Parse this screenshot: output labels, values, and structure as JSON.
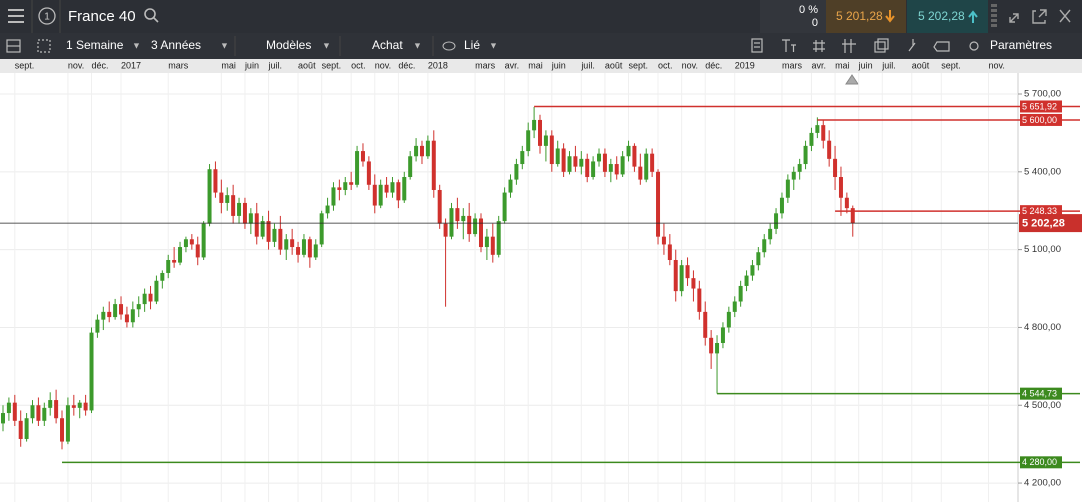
{
  "ui": {
    "instrument": "France 40",
    "badge": "1",
    "change_pct": "0 %",
    "change": "0",
    "sell": "5 201,28",
    "buy": "5 202,28",
    "toolbar": {
      "period": "1 Semaine",
      "range": "3 Années",
      "templates": "Modèles",
      "side": "Achat",
      "link": "Lié",
      "settings": "Paramètres"
    }
  },
  "chart_data": {
    "type": "candlestick",
    "grid": true,
    "up_color": "#3c9a2c",
    "down_color": "#d0312d",
    "ylim": [
      4127,
      5781
    ],
    "yticks": [
      {
        "value": 4200,
        "label": "4 200,00"
      },
      {
        "value": 4500,
        "label": "4 500,00"
      },
      {
        "value": 4800,
        "label": "4 800,00"
      },
      {
        "value": 5100,
        "label": "5 100,00"
      },
      {
        "value": 5400,
        "label": "5 400,00"
      },
      {
        "value": 5700,
        "label": "5 700,00"
      }
    ],
    "categories": [
      null,
      null,
      "sept.",
      null,
      null,
      null,
      null,
      null,
      null,
      null,
      null,
      "nov.",
      null,
      null,
      null,
      "déc.",
      null,
      null,
      null,
      null,
      "2017",
      null,
      null,
      null,
      null,
      null,
      null,
      null,
      "mars",
      null,
      null,
      null,
      null,
      null,
      null,
      null,
      null,
      "mai",
      null,
      null,
      null,
      "juin",
      null,
      null,
      null,
      "juil.",
      null,
      null,
      null,
      null,
      "août",
      null,
      null,
      null,
      "sept.",
      null,
      null,
      null,
      null,
      "oct.",
      null,
      null,
      null,
      "nov.",
      null,
      null,
      null,
      "déc.",
      null,
      null,
      null,
      null,
      "2018",
      null,
      null,
      null,
      null,
      null,
      null,
      null,
      "mars",
      null,
      null,
      null,
      null,
      "avr.",
      null,
      null,
      null,
      "mai",
      null,
      null,
      null,
      "juin",
      null,
      null,
      null,
      null,
      "juil.",
      null,
      null,
      null,
      "août",
      null,
      null,
      null,
      "sept.",
      null,
      null,
      null,
      null,
      "oct.",
      null,
      null,
      null,
      "nov.",
      null,
      null,
      null,
      "déc.",
      null,
      null,
      null,
      null,
      "2019",
      null,
      null,
      null,
      null,
      null,
      null,
      null,
      "mars",
      null,
      null,
      null,
      null,
      "avr.",
      null,
      null,
      null,
      "mai",
      null,
      null,
      null,
      "juin",
      null,
      null,
      null,
      "juil.",
      null,
      null,
      null,
      null,
      "août",
      null,
      null,
      null,
      null,
      "sept.",
      null,
      null,
      null,
      null,
      null,
      null,
      null,
      "nov.",
      null,
      null,
      null,
      null
    ],
    "candles": [
      [
        4430,
        4500,
        4400,
        4470
      ],
      [
        4470,
        4530,
        4440,
        4510
      ],
      [
        4510,
        4540,
        4420,
        4440
      ],
      [
        4440,
        4480,
        4340,
        4370
      ],
      [
        4370,
        4470,
        4360,
        4450
      ],
      [
        4450,
        4520,
        4430,
        4500
      ],
      [
        4500,
        4530,
        4420,
        4440
      ],
      [
        4440,
        4510,
        4420,
        4490
      ],
      [
        4490,
        4550,
        4460,
        4520
      ],
      [
        4520,
        4560,
        4430,
        4450
      ],
      [
        4450,
        4480,
        4330,
        4360
      ],
      [
        4360,
        4530,
        4350,
        4500
      ],
      [
        4500,
        4540,
        4460,
        4490
      ],
      [
        4490,
        4520,
        4450,
        4510
      ],
      [
        4510,
        4540,
        4460,
        4480
      ],
      [
        4480,
        4800,
        4470,
        4780
      ],
      [
        4780,
        4850,
        4760,
        4830
      ],
      [
        4830,
        4880,
        4790,
        4860
      ],
      [
        4860,
        4900,
        4820,
        4840
      ],
      [
        4840,
        4910,
        4830,
        4890
      ],
      [
        4890,
        4920,
        4830,
        4850
      ],
      [
        4850,
        4880,
        4800,
        4820
      ],
      [
        4820,
        4900,
        4800,
        4870
      ],
      [
        4870,
        4920,
        4840,
        4890
      ],
      [
        4890,
        4950,
        4860,
        4930
      ],
      [
        4930,
        4960,
        4870,
        4900
      ],
      [
        4900,
        5000,
        4890,
        4980
      ],
      [
        4980,
        5020,
        4950,
        5010
      ],
      [
        5010,
        5080,
        4990,
        5060
      ],
      [
        5060,
        5110,
        5030,
        5050
      ],
      [
        5050,
        5130,
        5040,
        5110
      ],
      [
        5110,
        5150,
        5090,
        5140
      ],
      [
        5140,
        5160,
        5100,
        5120
      ],
      [
        5120,
        5150,
        5040,
        5070
      ],
      [
        5070,
        5210,
        5060,
        5200
      ],
      [
        5200,
        5430,
        5190,
        5410
      ],
      [
        5410,
        5440,
        5300,
        5320
      ],
      [
        5320,
        5370,
        5240,
        5280
      ],
      [
        5280,
        5340,
        5250,
        5310
      ],
      [
        5310,
        5350,
        5200,
        5230
      ],
      [
        5230,
        5300,
        5200,
        5280
      ],
      [
        5280,
        5300,
        5180,
        5200
      ],
      [
        5200,
        5260,
        5160,
        5240
      ],
      [
        5240,
        5280,
        5120,
        5150
      ],
      [
        5150,
        5230,
        5140,
        5210
      ],
      [
        5210,
        5250,
        5100,
        5130
      ],
      [
        5130,
        5200,
        5110,
        5180
      ],
      [
        5180,
        5230,
        5080,
        5100
      ],
      [
        5100,
        5160,
        5060,
        5140
      ],
      [
        5140,
        5180,
        5080,
        5110
      ],
      [
        5110,
        5130,
        5050,
        5080
      ],
      [
        5080,
        5160,
        5070,
        5140
      ],
      [
        5140,
        5150,
        5030,
        5070
      ],
      [
        5070,
        5140,
        5060,
        5120
      ],
      [
        5120,
        5250,
        5110,
        5240
      ],
      [
        5240,
        5300,
        5220,
        5270
      ],
      [
        5270,
        5360,
        5250,
        5340
      ],
      [
        5340,
        5370,
        5290,
        5330
      ],
      [
        5330,
        5380,
        5310,
        5360
      ],
      [
        5360,
        5400,
        5330,
        5350
      ],
      [
        5350,
        5500,
        5340,
        5480
      ],
      [
        5480,
        5510,
        5420,
        5440
      ],
      [
        5440,
        5460,
        5330,
        5350
      ],
      [
        5350,
        5390,
        5240,
        5270
      ],
      [
        5270,
        5370,
        5260,
        5350
      ],
      [
        5350,
        5380,
        5300,
        5320
      ],
      [
        5320,
        5380,
        5300,
        5360
      ],
      [
        5360,
        5370,
        5260,
        5290
      ],
      [
        5290,
        5400,
        5280,
        5380
      ],
      [
        5380,
        5480,
        5370,
        5460
      ],
      [
        5460,
        5530,
        5440,
        5500
      ],
      [
        5500,
        5520,
        5430,
        5460
      ],
      [
        5460,
        5540,
        5450,
        5520
      ],
      [
        5520,
        5560,
        5300,
        5330
      ],
      [
        5330,
        5350,
        5180,
        5200
      ],
      [
        5200,
        5220,
        4880,
        5150
      ],
      [
        5150,
        5280,
        5140,
        5260
      ],
      [
        5260,
        5300,
        5180,
        5210
      ],
      [
        5210,
        5260,
        5140,
        5230
      ],
      [
        5230,
        5280,
        5130,
        5160
      ],
      [
        5160,
        5240,
        5150,
        5220
      ],
      [
        5220,
        5240,
        5090,
        5110
      ],
      [
        5110,
        5180,
        5060,
        5150
      ],
      [
        5150,
        5200,
        5050,
        5080
      ],
      [
        5080,
        5230,
        5070,
        5210
      ],
      [
        5210,
        5340,
        5200,
        5320
      ],
      [
        5320,
        5390,
        5300,
        5370
      ],
      [
        5370,
        5450,
        5350,
        5430
      ],
      [
        5430,
        5500,
        5410,
        5480
      ],
      [
        5480,
        5590,
        5460,
        5560
      ],
      [
        5560,
        5650,
        5530,
        5600
      ],
      [
        5600,
        5620,
        5470,
        5500
      ],
      [
        5500,
        5560,
        5440,
        5540
      ],
      [
        5540,
        5560,
        5400,
        5430
      ],
      [
        5430,
        5520,
        5420,
        5490
      ],
      [
        5490,
        5510,
        5380,
        5400
      ],
      [
        5400,
        5480,
        5390,
        5460
      ],
      [
        5460,
        5500,
        5400,
        5420
      ],
      [
        5420,
        5480,
        5390,
        5450
      ],
      [
        5450,
        5470,
        5360,
        5380
      ],
      [
        5380,
        5460,
        5370,
        5440
      ],
      [
        5440,
        5490,
        5420,
        5470
      ],
      [
        5470,
        5490,
        5380,
        5400
      ],
      [
        5400,
        5450,
        5360,
        5430
      ],
      [
        5430,
        5460,
        5370,
        5390
      ],
      [
        5390,
        5480,
        5380,
        5460
      ],
      [
        5460,
        5520,
        5440,
        5500
      ],
      [
        5500,
        5510,
        5400,
        5420
      ],
      [
        5420,
        5470,
        5350,
        5370
      ],
      [
        5370,
        5490,
        5360,
        5470
      ],
      [
        5470,
        5490,
        5380,
        5400
      ],
      [
        5400,
        5410,
        5120,
        5150
      ],
      [
        5150,
        5200,
        5080,
        5120
      ],
      [
        5120,
        5160,
        5040,
        5060
      ],
      [
        5060,
        5100,
        4900,
        4940
      ],
      [
        4940,
        5060,
        4920,
        5040
      ],
      [
        5040,
        5070,
        4960,
        4990
      ],
      [
        4990,
        5020,
        4900,
        4950
      ],
      [
        4950,
        4980,
        4830,
        4860
      ],
      [
        4860,
        4900,
        4730,
        4760
      ],
      [
        4760,
        4790,
        4640,
        4700
      ],
      [
        4700,
        4770,
        4545,
        4740
      ],
      [
        4740,
        4820,
        4720,
        4800
      ],
      [
        4800,
        4880,
        4780,
        4860
      ],
      [
        4860,
        4920,
        4840,
        4900
      ],
      [
        4900,
        4980,
        4880,
        4960
      ],
      [
        4960,
        5020,
        4940,
        5000
      ],
      [
        5000,
        5060,
        4980,
        5040
      ],
      [
        5040,
        5110,
        5020,
        5090
      ],
      [
        5090,
        5160,
        5070,
        5140
      ],
      [
        5140,
        5200,
        5120,
        5180
      ],
      [
        5180,
        5260,
        5160,
        5240
      ],
      [
        5240,
        5320,
        5220,
        5300
      ],
      [
        5300,
        5390,
        5280,
        5370
      ],
      [
        5370,
        5420,
        5330,
        5400
      ],
      [
        5400,
        5450,
        5370,
        5430
      ],
      [
        5430,
        5520,
        5410,
        5500
      ],
      [
        5500,
        5570,
        5480,
        5550
      ],
      [
        5550,
        5610,
        5530,
        5580
      ],
      [
        5580,
        5600,
        5490,
        5520
      ],
      [
        5520,
        5560,
        5420,
        5450
      ],
      [
        5450,
        5500,
        5330,
        5380
      ],
      [
        5380,
        5420,
        5230,
        5300
      ],
      [
        5300,
        5320,
        5240,
        5260
      ],
      [
        5260,
        5270,
        5150,
        5202.28
      ],
      null,
      null,
      null,
      null,
      null,
      null,
      null,
      null,
      null,
      null,
      null,
      null,
      null,
      null,
      null,
      null,
      null,
      null,
      null,
      null,
      null,
      null,
      null,
      null,
      null,
      null,
      null
    ],
    "levels": [
      {
        "value": 5651.92,
        "label": "5 651,92",
        "color": "#d0312d",
        "start": 90
      },
      {
        "value": 5600,
        "label": "5 600,00",
        "color": "#d0312d",
        "start": 138
      },
      {
        "value": 5248.33,
        "label": "5 248,33",
        "color": "#d0312d",
        "start": 141
      },
      {
        "value": 4544.73,
        "label": "4 544,73",
        "color": "#3c8a1e",
        "start": 121
      },
      {
        "value": 4280,
        "label": "4 280,00",
        "color": "#3c8a1e",
        "start": 10
      }
    ],
    "current": {
      "value": 5202.28,
      "label": "5 202,28",
      "color": "#c9302c"
    }
  }
}
